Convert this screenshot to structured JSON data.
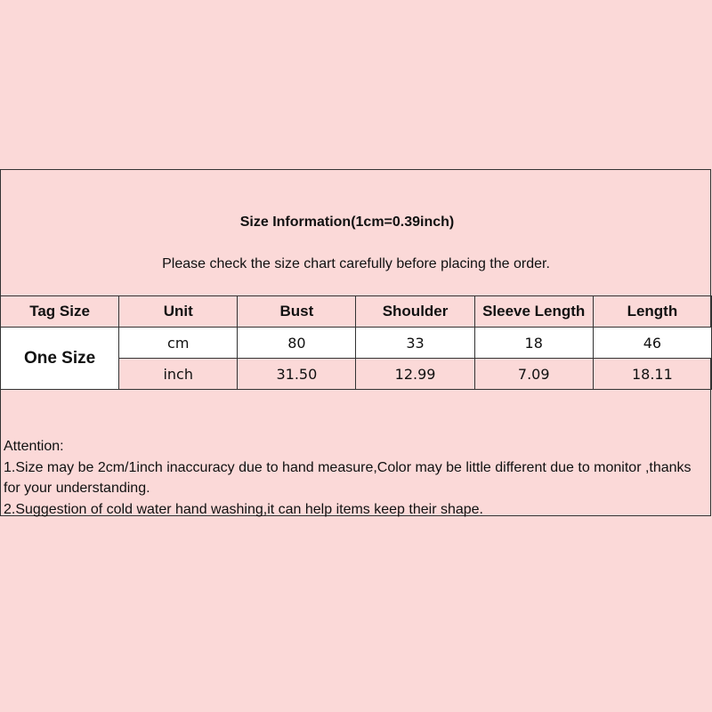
{
  "title": "Size Information(1cm=0.39inch)",
  "subtitle": "Please check the size chart carefully before placing the order.",
  "table": {
    "headers": [
      "Tag Size",
      "Unit",
      "Bust",
      "Shoulder",
      "Sleeve Length",
      "Length"
    ],
    "tag_size": "One Size",
    "rows": [
      {
        "unit": "cm",
        "values": [
          "80",
          "33",
          "18",
          "46"
        ]
      },
      {
        "unit": "inch",
        "values": [
          "31.50",
          "12.99",
          "7.09",
          "18.11"
        ]
      }
    ]
  },
  "notes": {
    "heading": "Attention:",
    "items": [
      "1.Size may be 2cm/1inch inaccuracy due to hand measure,Color may be little different due to monitor ,thanks for your understanding.",
      "2.Suggestion of cold water hand washing,it can help items keep their shape."
    ]
  }
}
